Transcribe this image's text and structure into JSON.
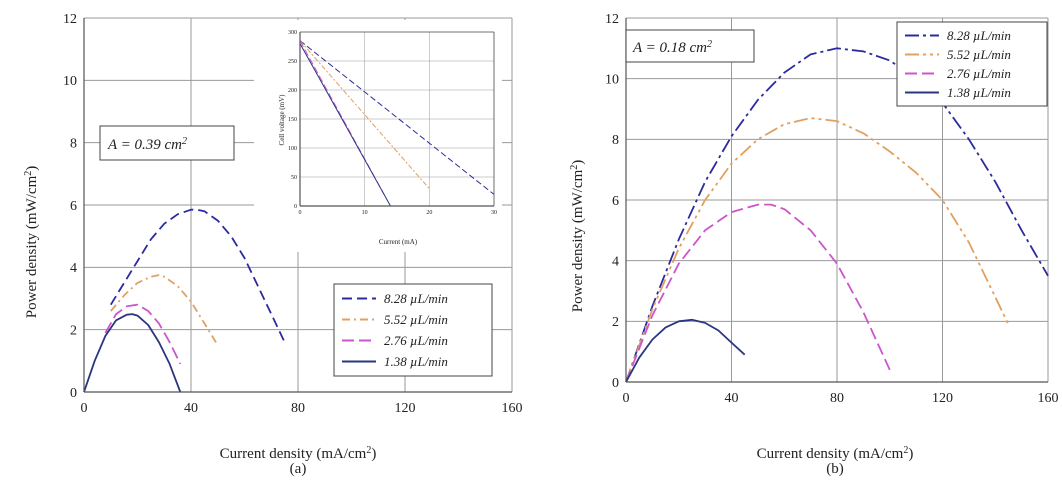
{
  "figure": {
    "panels": [
      {
        "id": "a",
        "caption": "(a)",
        "area_label": "A = 0.39 cm",
        "area_sup": "2"
      },
      {
        "id": "b",
        "caption": "(b)",
        "area_label": "A = 0.18 cm",
        "area_sup": "2"
      }
    ]
  },
  "colors": {
    "s828": "#2b2b9f",
    "s552": "#e0a060",
    "s276": "#cc55cc",
    "s138": "#2b3580",
    "grid": "#9a9a9a",
    "axis": "#555555"
  },
  "chart_data": [
    {
      "type": "line",
      "panel": "a",
      "xlabel": "Current density (mA/cm",
      "xlabel_sup": "2",
      "xlabel_end": ")",
      "ylabel": "Power density (mW/cm",
      "ylabel_sup": "2",
      "ylabel_end": ")",
      "xlim": [
        0,
        160
      ],
      "ylim": [
        0,
        12
      ],
      "xticks": [
        0,
        40,
        80,
        120,
        160
      ],
      "yticks": [
        0,
        2,
        4,
        6,
        8,
        10,
        12
      ],
      "grid": true,
      "legend_position": "bottom-right",
      "series": [
        {
          "name": "8.28 µL/min",
          "color_key": "s828",
          "dash": "10,5",
          "x": [
            10,
            15,
            20,
            25,
            30,
            35,
            40,
            42,
            45,
            50,
            55,
            60,
            65,
            70,
            75
          ],
          "y": [
            2.8,
            3.5,
            4.2,
            4.9,
            5.4,
            5.7,
            5.85,
            5.85,
            5.8,
            5.5,
            5.0,
            4.3,
            3.4,
            2.5,
            1.6
          ]
        },
        {
          "name": "5.52 µL/min",
          "color_key": "s552",
          "dash": "8,4,2,4",
          "x": [
            10,
            15,
            20,
            25,
            28,
            30,
            35,
            40,
            45,
            50
          ],
          "y": [
            2.6,
            3.1,
            3.5,
            3.7,
            3.75,
            3.7,
            3.4,
            2.9,
            2.2,
            1.5
          ]
        },
        {
          "name": "2.76 µL/min",
          "color_key": "s276",
          "dash": "12,5",
          "x": [
            8,
            12,
            16,
            20,
            24,
            28,
            32,
            36
          ],
          "y": [
            1.9,
            2.5,
            2.75,
            2.8,
            2.6,
            2.2,
            1.6,
            0.9
          ]
        },
        {
          "name": "1.38 µL/min",
          "color_key": "s138",
          "dash": "",
          "x": [
            0,
            4,
            8,
            12,
            16,
            18,
            20,
            24,
            28,
            32,
            36
          ],
          "y": [
            0,
            1.0,
            1.8,
            2.3,
            2.48,
            2.5,
            2.45,
            2.15,
            1.6,
            0.9,
            0
          ]
        }
      ]
    },
    {
      "type": "line",
      "panel": "a-inset",
      "xlabel": "Current (mA)",
      "ylabel": "Cell voltage (mV)",
      "xlim": [
        0,
        30
      ],
      "ylim": [
        0,
        300
      ],
      "xticks": [
        0,
        10,
        20,
        30
      ],
      "yticks": [
        0,
        50,
        100,
        150,
        200,
        250,
        300
      ],
      "grid": true,
      "series": [
        {
          "name": "8.28 µL/min",
          "color_key": "s828",
          "dash": "6,3",
          "x": [
            0,
            30
          ],
          "y": [
            285,
            20
          ]
        },
        {
          "name": "5.52 µL/min",
          "color_key": "s552",
          "dash": "5,2,2,2",
          "x": [
            0,
            20
          ],
          "y": [
            285,
            30
          ]
        },
        {
          "name": "2.76 µL/min",
          "color_key": "s276",
          "dash": "7,3",
          "x": [
            0,
            13
          ],
          "y": [
            285,
            20
          ]
        },
        {
          "name": "1.38 µL/min",
          "color_key": "s138",
          "dash": "",
          "x": [
            0,
            14
          ],
          "y": [
            280,
            0
          ]
        }
      ]
    },
    {
      "type": "line",
      "panel": "b",
      "xlabel": "Current density (mA/cm",
      "xlabel_sup": "2",
      "xlabel_end": ")",
      "ylabel": "Power density (mW/cm",
      "ylabel_sup": "2",
      "ylabel_end": ")",
      "xlim": [
        0,
        160
      ],
      "ylim": [
        0,
        12
      ],
      "xticks": [
        0,
        40,
        80,
        120,
        160
      ],
      "yticks": [
        0,
        2,
        4,
        6,
        8,
        10,
        12
      ],
      "grid": true,
      "legend_position": "top-right",
      "series": [
        {
          "name": "8.28 µL/min",
          "color_key": "s828",
          "dash": "14,4,3,4",
          "x": [
            0,
            10,
            20,
            30,
            40,
            50,
            60,
            70,
            80,
            90,
            100,
            110,
            120,
            130,
            140,
            150,
            160
          ],
          "y": [
            0,
            2.5,
            4.7,
            6.6,
            8.1,
            9.3,
            10.2,
            10.8,
            11.0,
            10.9,
            10.6,
            10.0,
            9.2,
            8.0,
            6.6,
            5.0,
            3.5
          ]
        },
        {
          "name": "5.52 µL/min",
          "color_key": "s552",
          "dash": "14,4,3,4,3,4",
          "x": [
            0,
            10,
            20,
            30,
            40,
            50,
            60,
            70,
            80,
            90,
            100,
            110,
            120,
            130,
            140,
            145
          ],
          "y": [
            0,
            2.4,
            4.4,
            6.0,
            7.2,
            8.0,
            8.5,
            8.7,
            8.6,
            8.2,
            7.6,
            6.9,
            6.0,
            4.6,
            2.8,
            1.9
          ]
        },
        {
          "name": "2.76 µL/min",
          "color_key": "s276",
          "dash": "12,5",
          "x": [
            0,
            10,
            20,
            30,
            40,
            50,
            55,
            60,
            70,
            80,
            90,
            100
          ],
          "y": [
            0,
            2.2,
            3.9,
            5.0,
            5.6,
            5.85,
            5.85,
            5.7,
            5.0,
            3.9,
            2.3,
            0.4
          ]
        },
        {
          "name": "1.38 µL/min",
          "color_key": "s138",
          "dash": "",
          "x": [
            0,
            5,
            10,
            15,
            20,
            25,
            30,
            35,
            40,
            45
          ],
          "y": [
            0,
            0.8,
            1.4,
            1.8,
            2.0,
            2.05,
            1.95,
            1.7,
            1.3,
            0.9
          ]
        }
      ]
    }
  ]
}
